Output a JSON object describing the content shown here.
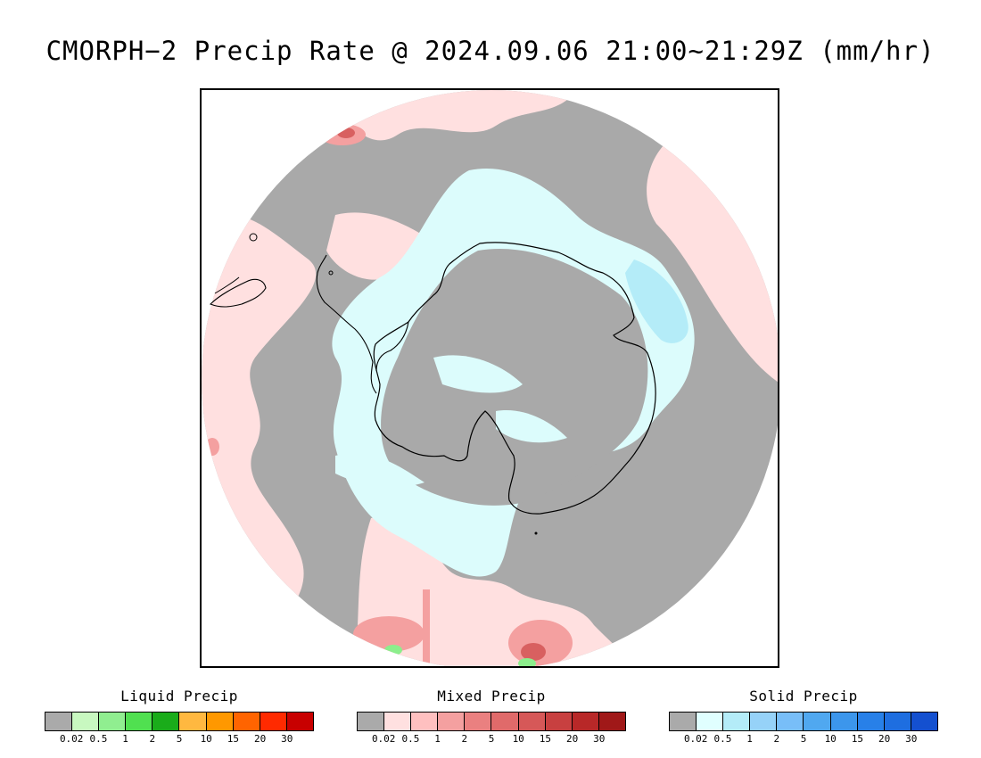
{
  "title": "CMORPH−2 Precip Rate @ 2024.09.06 21:00~21:29Z (mm/hr)",
  "map": {
    "projection": "south-polar-stereographic",
    "colors": {
      "background_gray": "#a9a9a9",
      "mixed_light": "#ffe0e0",
      "mixed_mid": "#f4a0a0",
      "mixed_strong": "#d86060",
      "solid_light": "#dcfcfc",
      "solid_mid": "#b4ecf8",
      "liquid_light": "#8cee8c",
      "coastline": "#000000"
    }
  },
  "legends": [
    {
      "title": "Liquid Precip",
      "colors": [
        "#aaaaaa",
        "#c8f8c0",
        "#90ee90",
        "#50e050",
        "#1aac1a",
        "#ffb840",
        "#ff9800",
        "#ff6400",
        "#ff2a00",
        "#c80000"
      ],
      "ticks": [
        "0.02",
        "0.5",
        "1",
        "2",
        "5",
        "10",
        "15",
        "20",
        "30"
      ]
    },
    {
      "title": "Mixed Precip",
      "colors": [
        "#aaaaaa",
        "#ffe0e0",
        "#ffc0c0",
        "#f4a0a0",
        "#ea8080",
        "#e06a6a",
        "#d65858",
        "#c84040",
        "#b82828",
        "#a01818"
      ],
      "ticks": [
        "0.02",
        "0.5",
        "1",
        "2",
        "5",
        "10",
        "15",
        "20",
        "30"
      ]
    },
    {
      "title": "Solid Precip",
      "colors": [
        "#aaaaaa",
        "#e0ffff",
        "#b4ecf8",
        "#96d2f8",
        "#78bef8",
        "#50a8f0",
        "#3c96ec",
        "#2880e8",
        "#1e6ee0",
        "#1450d0"
      ],
      "ticks": [
        "0.02",
        "0.5",
        "1",
        "2",
        "5",
        "10",
        "15",
        "20",
        "30"
      ]
    }
  ]
}
